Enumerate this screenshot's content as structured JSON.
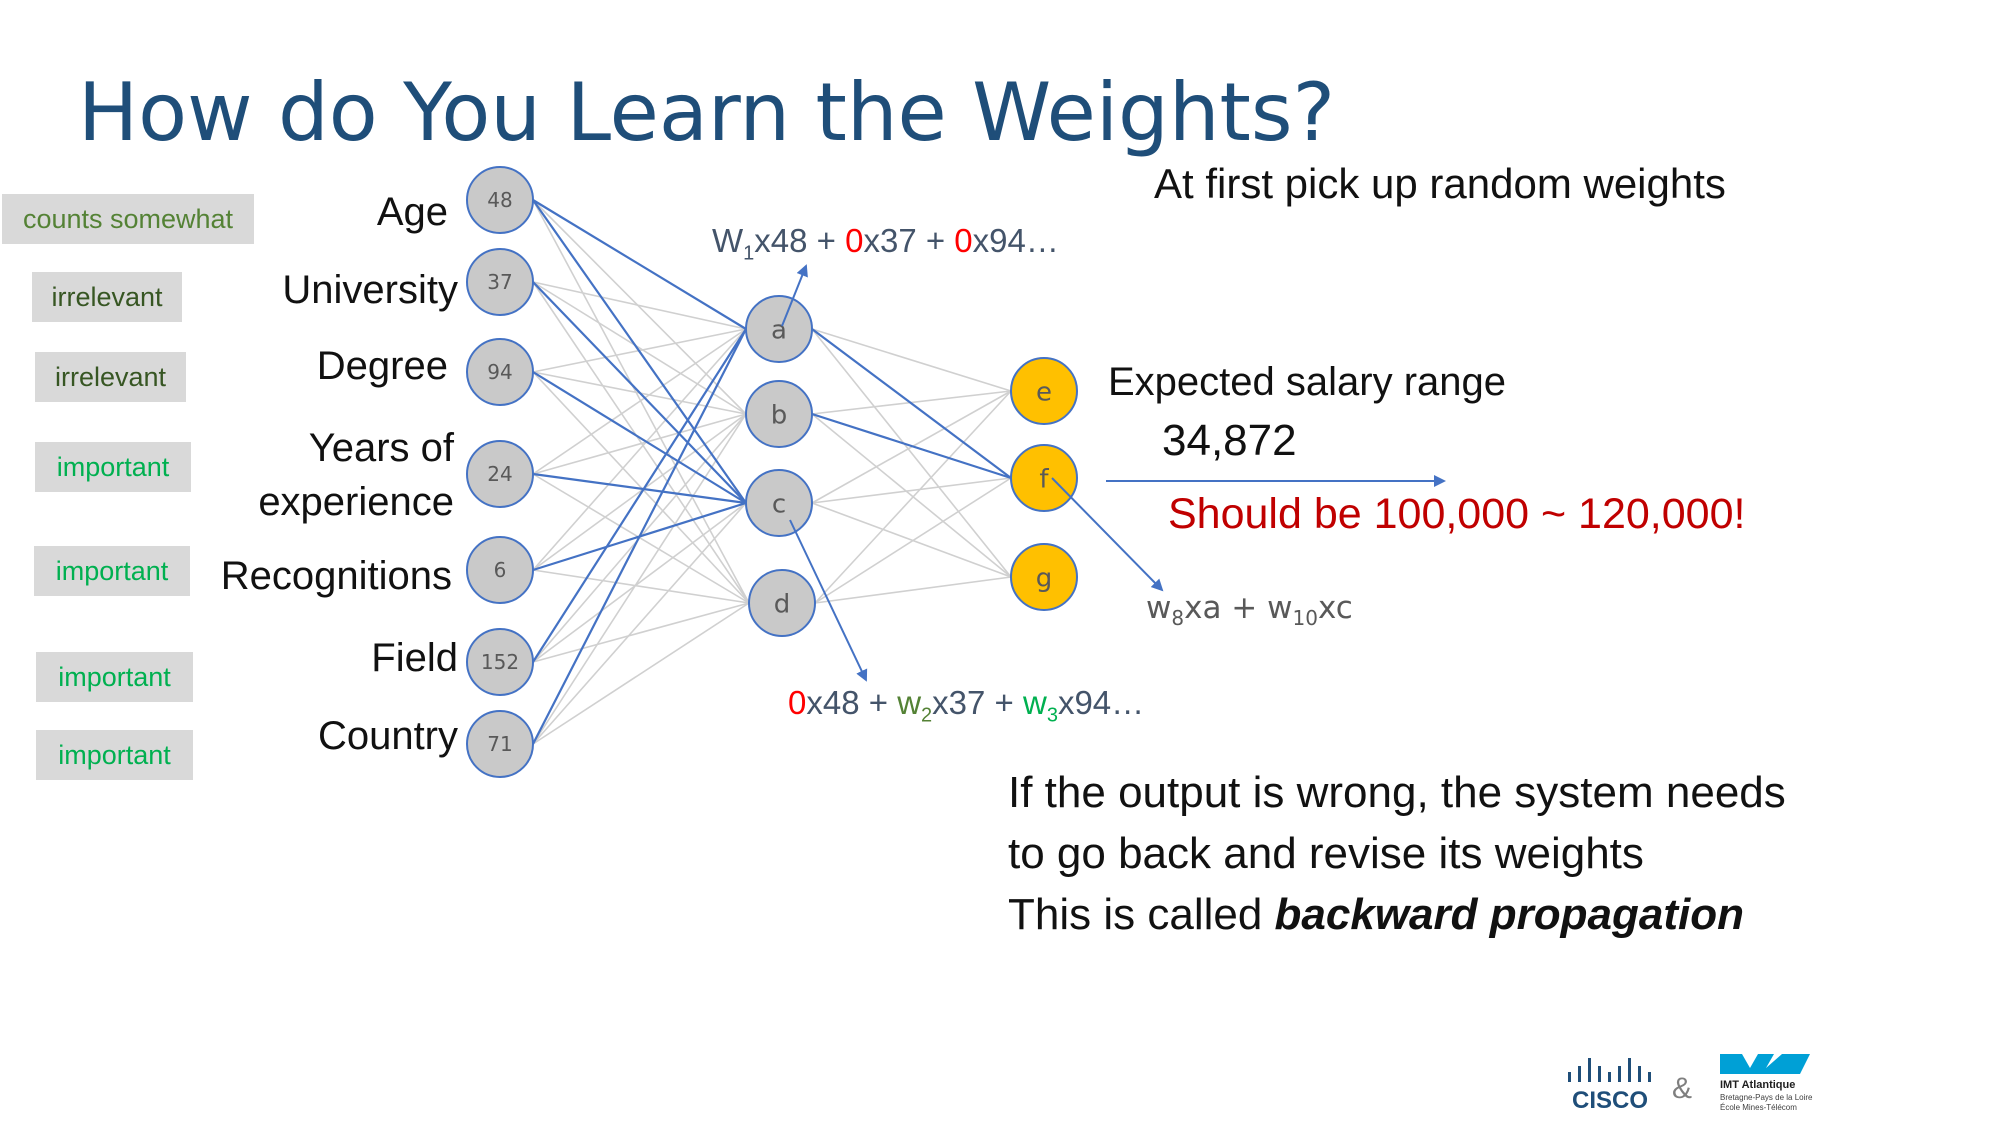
{
  "title": "How do You Learn the Weights?",
  "relevance_tags": [
    {
      "label": "counts somewhat",
      "color": "#548235"
    },
    {
      "label": "irrelevant",
      "color": "#375623"
    },
    {
      "label": "irrelevant",
      "color": "#375623"
    },
    {
      "label": "important",
      "color": "#00b050"
    },
    {
      "label": "important",
      "color": "#00b050"
    },
    {
      "label": "important",
      "color": "#00b050"
    },
    {
      "label": "important",
      "color": "#00b050"
    }
  ],
  "input_features": [
    {
      "label": "Age",
      "value": "48"
    },
    {
      "label": "University",
      "value": "37"
    },
    {
      "label": "Degree",
      "value": "94"
    },
    {
      "label": "Years of experience",
      "line1": "Years of",
      "line2": "experience",
      "value": "24"
    },
    {
      "label": "Recognitions",
      "value": "6"
    },
    {
      "label": "Field",
      "value": "152"
    },
    {
      "label": "Country",
      "value": "71"
    }
  ],
  "hidden_nodes": [
    "a",
    "b",
    "c",
    "d"
  ],
  "output_nodes": [
    "e",
    "f",
    "g"
  ],
  "colors": {
    "input_node": "#c9c9c9",
    "input_node_border": "#4472c4",
    "output_node": "#ffc000",
    "highlight_edge": "#4472c4",
    "edge": "#d0d0d0",
    "zero_weight": "#ff0000",
    "weight_green": "#548235",
    "weight_bright_green": "#00b050",
    "warning": "#c00000"
  },
  "formula_a": {
    "w": "W",
    "w_sub": "1",
    "t1": "x48 + ",
    "z1": "0",
    "t2": "x37 + ",
    "z2": "0",
    "t3": "x94…"
  },
  "formula_c": {
    "z": "0",
    "t1": "x48 + ",
    "w2": "w",
    "w2_sub": "2",
    "t2": "x37 + ",
    "w3": "w",
    "w3_sub": "3",
    "t3": "x94…"
  },
  "formula_f": {
    "w8": "w",
    "w8_sub": "8",
    "t1": "xa + ",
    "w10": "w",
    "w10_sub": "10",
    "t2": "xc"
  },
  "notes": {
    "random_weights": "At first pick up random weights",
    "expected_label": "Expected salary range",
    "expected_value": "34,872",
    "should_be": "Should be 100,000 ~ 120,000!"
  },
  "bottom_note": {
    "line1": "If the output is wrong, the system needs",
    "line2": "to go back and revise its weights",
    "line3_prefix": "This is called ",
    "line3_emphasis": "backward propagation"
  },
  "logos": {
    "cisco": "CISCO",
    "ampersand": "&",
    "imt_name": "IMT Atlantique",
    "imt_sub1": "Bretagne-Pays de la Loire",
    "imt_sub2": "École Mines-Télécom"
  }
}
